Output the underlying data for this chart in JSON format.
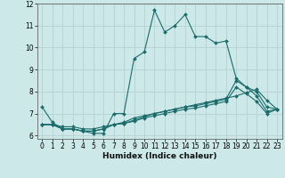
{
  "xlabel": "Humidex (Indice chaleur)",
  "bg_color": "#cce8e8",
  "line_color": "#1a6b6b",
  "grid_color": "#b8d4d4",
  "series": [
    {
      "x": [
        0,
        1,
        2,
        3,
        4,
        5,
        6,
        7,
        8,
        9,
        10,
        11,
        12,
        13,
        14,
        15,
        16,
        17,
        18,
        19,
        20,
        21,
        22,
        23
      ],
      "y": [
        7.3,
        6.6,
        6.3,
        6.3,
        6.2,
        6.1,
        6.1,
        7.0,
        7.0,
        9.5,
        9.8,
        11.7,
        10.7,
        11.0,
        11.5,
        10.5,
        10.5,
        10.2,
        10.3,
        8.6,
        8.2,
        8.0,
        7.3,
        7.2
      ]
    },
    {
      "x": [
        0,
        1,
        2,
        3,
        4,
        5,
        6,
        7,
        8,
        9,
        10,
        11,
        12,
        13,
        14,
        15,
        16,
        17,
        18,
        19,
        20,
        21,
        22,
        23
      ],
      "y": [
        6.5,
        6.5,
        6.4,
        6.4,
        6.3,
        6.3,
        6.4,
        6.5,
        6.6,
        6.8,
        6.9,
        7.0,
        7.1,
        7.2,
        7.3,
        7.4,
        7.5,
        7.6,
        7.7,
        7.8,
        7.95,
        8.1,
        7.6,
        7.2
      ]
    },
    {
      "x": [
        0,
        1,
        2,
        3,
        4,
        5,
        6,
        7,
        8,
        9,
        10,
        11,
        12,
        13,
        14,
        15,
        16,
        17,
        18,
        19,
        20,
        21,
        22,
        23
      ],
      "y": [
        6.5,
        6.5,
        6.3,
        6.3,
        6.2,
        6.2,
        6.3,
        6.5,
        6.55,
        6.7,
        6.85,
        7.0,
        7.1,
        7.2,
        7.3,
        7.35,
        7.45,
        7.55,
        7.65,
        8.5,
        8.2,
        7.8,
        7.1,
        7.2
      ]
    },
    {
      "x": [
        0,
        1,
        2,
        3,
        4,
        5,
        6,
        7,
        8,
        9,
        10,
        11,
        12,
        13,
        14,
        15,
        16,
        17,
        18,
        19,
        20,
        21,
        22,
        23
      ],
      "y": [
        6.5,
        6.5,
        6.3,
        6.3,
        6.2,
        6.2,
        6.3,
        6.5,
        6.55,
        6.65,
        6.8,
        6.9,
        7.0,
        7.1,
        7.2,
        7.25,
        7.35,
        7.45,
        7.55,
        8.2,
        7.9,
        7.55,
        7.0,
        7.2
      ]
    }
  ],
  "xlim": [
    -0.5,
    23.5
  ],
  "ylim": [
    5.85,
    12.0
  ],
  "yticks": [
    6,
    7,
    8,
    9,
    10,
    11,
    12
  ],
  "xticks": [
    0,
    1,
    2,
    3,
    4,
    5,
    6,
    7,
    8,
    9,
    10,
    11,
    12,
    13,
    14,
    15,
    16,
    17,
    18,
    19,
    20,
    21,
    22,
    23
  ],
  "xlabel_fontsize": 6.5,
  "tick_fontsize": 5.5
}
